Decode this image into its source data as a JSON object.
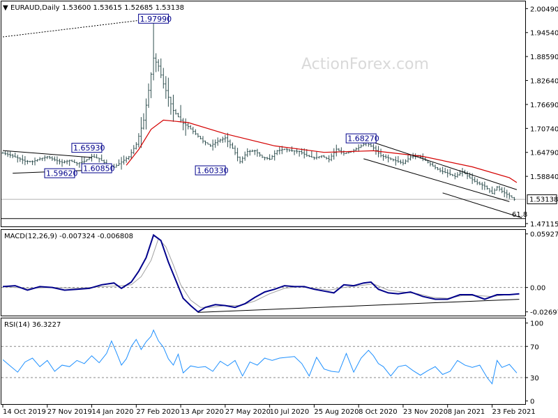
{
  "chart_data": [
    {
      "type": "candlestick",
      "header": {
        "arrow": "▼",
        "title": "EURAUD,Daily",
        "ohlc": "1.53600 1.53615 1.52685 1.53138"
      },
      "watermark": "ActionForex.com",
      "y_ticks": [
        "2.00490",
        "1.94540",
        "1.88590",
        "1.82640",
        "1.76690",
        "1.70740",
        "1.64790",
        "1.58840",
        "1.47115"
      ],
      "y_tick_values": [
        2.0049,
        1.9454,
        1.8859,
        1.8264,
        1.7669,
        1.7074,
        1.6479,
        1.5884,
        1.47115
      ],
      "ylim": [
        1.4641,
        2.0228
      ],
      "current_price": "1.53138",
      "current_price_value": 1.53138,
      "fib_label": "61.8",
      "fib_value": 1.4835,
      "callouts": [
        {
          "text": "1.97990",
          "x": 61.0,
          "y": 1.9799
        },
        {
          "text": "1.65930",
          "x": 34.0,
          "y": 1.6593
        },
        {
          "text": "1.59620",
          "x": 23.0,
          "y": 1.5962
        },
        {
          "text": "1.60850",
          "x": 38.0,
          "y": 1.6085
        },
        {
          "text": "1.60330",
          "x": 84.0,
          "y": 1.6033
        },
        {
          "text": "1.68270",
          "x": 145.0,
          "y": 1.6827
        }
      ],
      "xlim": [
        0,
        210
      ],
      "ma_series": [
        [
          50,
          1.616
        ],
        [
          55,
          1.655
        ],
        [
          60,
          1.705
        ],
        [
          65,
          1.728
        ],
        [
          75,
          1.722
        ],
        [
          90,
          1.694
        ],
        [
          110,
          1.664
        ],
        [
          130,
          1.648
        ],
        [
          150,
          1.652
        ],
        [
          170,
          1.638
        ],
        [
          190,
          1.612
        ],
        [
          205,
          1.585
        ],
        [
          208,
          1.573
        ]
      ],
      "price_series": [
        [
          0,
          1.646
        ],
        [
          3,
          1.641
        ],
        [
          6,
          1.634
        ],
        [
          9,
          1.626
        ],
        [
          12,
          1.625
        ],
        [
          15,
          1.632
        ],
        [
          18,
          1.637
        ],
        [
          21,
          1.629
        ],
        [
          24,
          1.623
        ],
        [
          27,
          1.628
        ],
        [
          30,
          1.62
        ],
        [
          33,
          1.626
        ],
        [
          36,
          1.638
        ],
        [
          39,
          1.632
        ],
        [
          42,
          1.618
        ],
        [
          45,
          1.611
        ],
        [
          48,
          1.624
        ],
        [
          51,
          1.637
        ],
        [
          54,
          1.668
        ],
        [
          57,
          1.728
        ],
        [
          59,
          1.802
        ],
        [
          61,
          1.882
        ],
        [
          63,
          1.862
        ],
        [
          65,
          1.818
        ],
        [
          67,
          1.785
        ],
        [
          69,
          1.752
        ],
        [
          71,
          1.736
        ],
        [
          73,
          1.72
        ],
        [
          75,
          1.712
        ],
        [
          78,
          1.694
        ],
        [
          81,
          1.676
        ],
        [
          84,
          1.664
        ],
        [
          87,
          1.676
        ],
        [
          90,
          1.684
        ],
        [
          93,
          1.658
        ],
        [
          96,
          1.625
        ],
        [
          99,
          1.65
        ],
        [
          102,
          1.652
        ],
        [
          105,
          1.636
        ],
        [
          108,
          1.631
        ],
        [
          111,
          1.652
        ],
        [
          114,
          1.656
        ],
        [
          117,
          1.652
        ],
        [
          120,
          1.65
        ],
        [
          123,
          1.64
        ],
        [
          126,
          1.634
        ],
        [
          129,
          1.639
        ],
        [
          132,
          1.63
        ],
        [
          135,
          1.656
        ],
        [
          138,
          1.645
        ],
        [
          141,
          1.65
        ],
        [
          144,
          1.66
        ],
        [
          147,
          1.672
        ],
        [
          150,
          1.659
        ],
        [
          153,
          1.64
        ],
        [
          156,
          1.634
        ],
        [
          159,
          1.627
        ],
        [
          162,
          1.621
        ],
        [
          165,
          1.637
        ],
        [
          168,
          1.64
        ],
        [
          171,
          1.628
        ],
        [
          174,
          1.614
        ],
        [
          177,
          1.602
        ],
        [
          180,
          1.596
        ],
        [
          183,
          1.588
        ],
        [
          186,
          1.6
        ],
        [
          189,
          1.584
        ],
        [
          192,
          1.572
        ],
        [
          195,
          1.564
        ],
        [
          198,
          1.546
        ],
        [
          200,
          1.562
        ],
        [
          202,
          1.551
        ],
        [
          205,
          1.54
        ],
        [
          207,
          1.531
        ]
      ],
      "lines": [
        {
          "name": "dotted-trend",
          "style": "dotted",
          "points": [
            [
              0,
              1.9346
            ],
            [
              61,
              1.9799
            ]
          ]
        },
        {
          "name": "left-channel-top",
          "style": "solid",
          "points": [
            [
              0,
              1.6525
            ],
            [
              36,
              1.6353
            ]
          ]
        },
        {
          "name": "left-channel-bottom",
          "style": "solid",
          "points": [
            [
              4,
              1.5962
            ],
            [
              34,
              1.6033
            ]
          ]
        },
        {
          "name": "channel-top",
          "style": "solid",
          "points": [
            [
              145,
              1.6827
            ],
            [
              208,
              1.5554
            ]
          ]
        },
        {
          "name": "channel-mid",
          "style": "solid",
          "points": [
            [
              146,
              1.6321
            ],
            [
              205,
              1.5257
            ]
          ]
        },
        {
          "name": "channel-bottom",
          "style": "solid",
          "points": [
            [
              178,
              1.5473
            ],
            [
              210,
              1.4855
            ]
          ]
        }
      ],
      "x_ticks": [
        "14 Oct 2019",
        "27 Nov 2019",
        "14 Jan 2020",
        "27 Feb 2020",
        "13 Apr 2020",
        "27 May 2020",
        "10 Jul 2020",
        "25 Aug 2020",
        "8 Oct 2020",
        "23 Nov 2020",
        "8 Jan 2021",
        "23 Feb 2021"
      ],
      "x_tick_positions": [
        0,
        18,
        36,
        54,
        72,
        90,
        108,
        126,
        144,
        162,
        180,
        198
      ]
    },
    {
      "type": "line",
      "name_label": "MACD(12,26,9) -0.007324 -0.006808",
      "y_ticks": [
        "0.059272",
        "0.00",
        "-0.026978"
      ],
      "y_tick_values": [
        0.059272,
        0.0,
        -0.026978
      ],
      "ylim": [
        -0.0311,
        0.0637
      ],
      "zero_value": 0.0,
      "support_line": [
        [
          79,
          -0.0275
        ],
        [
          209,
          -0.0131
        ]
      ],
      "macd_series": [
        [
          0,
          0.001
        ],
        [
          5,
          0.002
        ],
        [
          10,
          -0.003
        ],
        [
          15,
          0.001
        ],
        [
          20,
          0.0
        ],
        [
          25,
          -0.003
        ],
        [
          30,
          -0.002
        ],
        [
          35,
          -0.001
        ],
        [
          40,
          0.003
        ],
        [
          45,
          0.005
        ],
        [
          48,
          -0.001
        ],
        [
          52,
          0.006
        ],
        [
          55,
          0.018
        ],
        [
          58,
          0.033
        ],
        [
          61,
          0.058
        ],
        [
          64,
          0.052
        ],
        [
          67,
          0.028
        ],
        [
          70,
          0.008
        ],
        [
          73,
          -0.012
        ],
        [
          76,
          -0.02
        ],
        [
          79,
          -0.027
        ],
        [
          82,
          -0.022
        ],
        [
          86,
          -0.019
        ],
        [
          90,
          -0.02
        ],
        [
          94,
          -0.022
        ],
        [
          98,
          -0.018
        ],
        [
          102,
          -0.011
        ],
        [
          106,
          -0.005
        ],
        [
          110,
          -0.002
        ],
        [
          114,
          0.002
        ],
        [
          118,
          0.001
        ],
        [
          122,
          0.001
        ],
        [
          126,
          -0.002
        ],
        [
          130,
          -0.004
        ],
        [
          134,
          -0.006
        ],
        [
          138,
          0.003
        ],
        [
          142,
          0.002
        ],
        [
          146,
          0.005
        ],
        [
          149,
          0.006
        ],
        [
          152,
          -0.002
        ],
        [
          156,
          -0.006
        ],
        [
          160,
          -0.007
        ],
        [
          165,
          -0.005
        ],
        [
          170,
          -0.01
        ],
        [
          175,
          -0.013
        ],
        [
          180,
          -0.013
        ],
        [
          185,
          -0.008
        ],
        [
          190,
          -0.008
        ],
        [
          195,
          -0.013
        ],
        [
          200,
          -0.008
        ],
        [
          205,
          -0.008
        ],
        [
          209,
          -0.007
        ]
      ],
      "signal_series": [
        [
          0,
          0.001
        ],
        [
          10,
          -0.001
        ],
        [
          20,
          0.0
        ],
        [
          30,
          -0.001
        ],
        [
          40,
          0.001
        ],
        [
          48,
          0.002
        ],
        [
          52,
          0.003
        ],
        [
          56,
          0.012
        ],
        [
          60,
          0.03
        ],
        [
          63,
          0.054
        ],
        [
          66,
          0.045
        ],
        [
          69,
          0.025
        ],
        [
          72,
          0.003
        ],
        [
          76,
          -0.014
        ],
        [
          80,
          -0.022
        ],
        [
          84,
          -0.022
        ],
        [
          90,
          -0.02
        ],
        [
          96,
          -0.02
        ],
        [
          102,
          -0.015
        ],
        [
          108,
          -0.007
        ],
        [
          114,
          -0.001
        ],
        [
          120,
          0.001
        ],
        [
          126,
          -0.001
        ],
        [
          132,
          -0.003
        ],
        [
          138,
          0.0
        ],
        [
          144,
          0.002
        ],
        [
          150,
          0.004
        ],
        [
          156,
          -0.003
        ],
        [
          162,
          -0.005
        ],
        [
          168,
          -0.007
        ],
        [
          174,
          -0.011
        ],
        [
          180,
          -0.012
        ],
        [
          186,
          -0.009
        ],
        [
          192,
          -0.009
        ],
        [
          198,
          -0.01
        ],
        [
          204,
          -0.008
        ],
        [
          209,
          -0.007
        ]
      ]
    },
    {
      "type": "line",
      "name_label": "RSI(14) 36.3227",
      "y_ticks": [
        "100",
        "70",
        "30",
        "0"
      ],
      "y_tick_values": [
        100,
        70,
        30,
        0
      ],
      "ylim": [
        -4,
        106
      ],
      "levels": [
        70,
        30
      ],
      "rsi_series": [
        [
          0,
          53
        ],
        [
          3,
          45
        ],
        [
          6,
          37
        ],
        [
          9,
          50
        ],
        [
          12,
          55
        ],
        [
          15,
          44
        ],
        [
          18,
          52
        ],
        [
          21,
          38
        ],
        [
          24,
          46
        ],
        [
          27,
          44
        ],
        [
          30,
          52
        ],
        [
          33,
          48
        ],
        [
          36,
          58
        ],
        [
          39,
          49
        ],
        [
          42,
          61
        ],
        [
          44,
          77
        ],
        [
          46,
          62
        ],
        [
          48,
          46
        ],
        [
          50,
          54
        ],
        [
          52,
          70
        ],
        [
          54,
          79
        ],
        [
          56,
          66
        ],
        [
          58,
          76
        ],
        [
          60,
          83
        ],
        [
          61,
          91
        ],
        [
          63,
          77
        ],
        [
          65,
          69
        ],
        [
          67,
          54
        ],
        [
          69,
          46
        ],
        [
          71,
          60
        ],
        [
          73,
          36
        ],
        [
          76,
          45
        ],
        [
          79,
          43
        ],
        [
          82,
          44
        ],
        [
          85,
          38
        ],
        [
          88,
          51
        ],
        [
          91,
          45
        ],
        [
          94,
          52
        ],
        [
          97,
          32
        ],
        [
          100,
          50
        ],
        [
          103,
          46
        ],
        [
          106,
          55
        ],
        [
          109,
          52
        ],
        [
          112,
          55
        ],
        [
          115,
          56
        ],
        [
          118,
          57
        ],
        [
          121,
          48
        ],
        [
          124,
          32
        ],
        [
          127,
          56
        ],
        [
          130,
          41
        ],
        [
          133,
          38
        ],
        [
          136,
          37
        ],
        [
          139,
          61
        ],
        [
          142,
          37
        ],
        [
          145,
          55
        ],
        [
          148,
          65
        ],
        [
          150,
          58
        ],
        [
          152,
          48
        ],
        [
          154,
          44
        ],
        [
          157,
          32
        ],
        [
          160,
          44
        ],
        [
          163,
          46
        ],
        [
          166,
          39
        ],
        [
          169,
          33
        ],
        [
          172,
          39
        ],
        [
          175,
          44
        ],
        [
          178,
          34
        ],
        [
          181,
          38
        ],
        [
          184,
          52
        ],
        [
          187,
          46
        ],
        [
          190,
          43
        ],
        [
          193,
          46
        ],
        [
          196,
          30
        ],
        [
          198,
          22
        ],
        [
          200,
          52
        ],
        [
          202,
          43
        ],
        [
          205,
          47
        ],
        [
          208,
          36
        ]
      ]
    }
  ]
}
